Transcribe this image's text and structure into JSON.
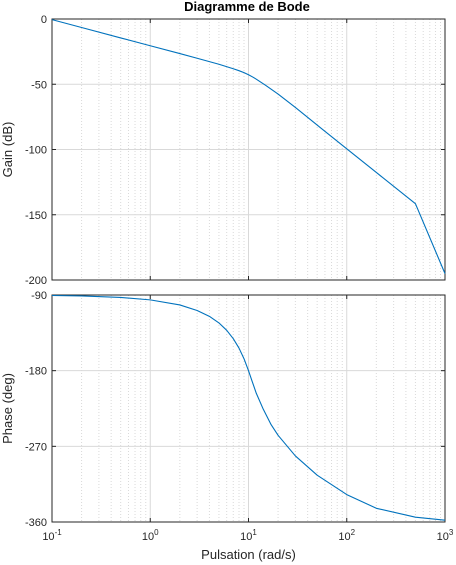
{
  "title": "Diagramme de Bode",
  "colors": {
    "line": "#0072BD",
    "axes": "#262626",
    "grid_major": "#d9d9d9",
    "grid_minor": "#d9d9d9",
    "background": "#ffffff"
  },
  "chart_data": [
    {
      "type": "line",
      "panel": "magnitude",
      "title": "Diagramme de Bode",
      "xlabel": "",
      "ylabel": "Gain (dB)",
      "xscale": "log",
      "xlim": [
        0.1,
        1000
      ],
      "ylim": [
        -200,
        0
      ],
      "yticks": [
        0,
        -50,
        -100,
        -150,
        -200
      ],
      "yticklabels": [
        "0",
        "-50",
        "-100",
        "-150",
        "-200"
      ],
      "grid": "on (major and minor)",
      "series": [
        {
          "x": [
            0.1,
            0.2,
            0.5,
            1,
            2,
            3,
            5,
            7,
            8,
            9,
            10,
            11,
            12,
            15,
            20,
            30,
            50,
            100,
            200,
            500,
            1000
          ],
          "y": [
            -0.5,
            -6.5,
            -14.5,
            -20.5,
            -26.5,
            -30.1,
            -34.7,
            -38.1,
            -39.6,
            -41.1,
            -42.7,
            -44.4,
            -46.1,
            -50.9,
            -57.5,
            -67.8,
            -81.3,
            -99.5,
            -117.6,
            -141.5,
            -195.1
          ]
        }
      ]
    },
    {
      "type": "line",
      "panel": "phase",
      "xlabel": "Pulsation  (rad/s)",
      "ylabel": "Phase (deg)",
      "xscale": "log",
      "xlim": [
        0.1,
        1000
      ],
      "ylim": [
        -360,
        -90
      ],
      "xticklabels": [
        "10^-1",
        "10^0",
        "10^1",
        "10^2",
        "10^3"
      ],
      "yticks": [
        -90,
        -180,
        -270,
        -360
      ],
      "yticklabels": [
        "-90",
        "-180",
        "-270",
        "-360"
      ],
      "grid": "on (major and minor)",
      "series": [
        {
          "x": [
            0.1,
            0.2,
            0.5,
            1,
            2,
            3,
            4,
            5,
            6,
            7,
            8,
            9,
            10,
            11,
            12,
            14,
            17,
            20,
            30,
            50,
            100,
            200,
            500,
            1000
          ],
          "y": [
            -90.6,
            -91.1,
            -92.9,
            -95.8,
            -101.8,
            -108.4,
            -115.4,
            -123.2,
            -132.0,
            -142.0,
            -153.1,
            -165.8,
            -180.0,
            -194.2,
            -206.9,
            -224.8,
            -244.3,
            -256.9,
            -281.4,
            -304.3,
            -327.4,
            -343.7,
            -354.3,
            -357.8
          ]
        }
      ]
    }
  ]
}
